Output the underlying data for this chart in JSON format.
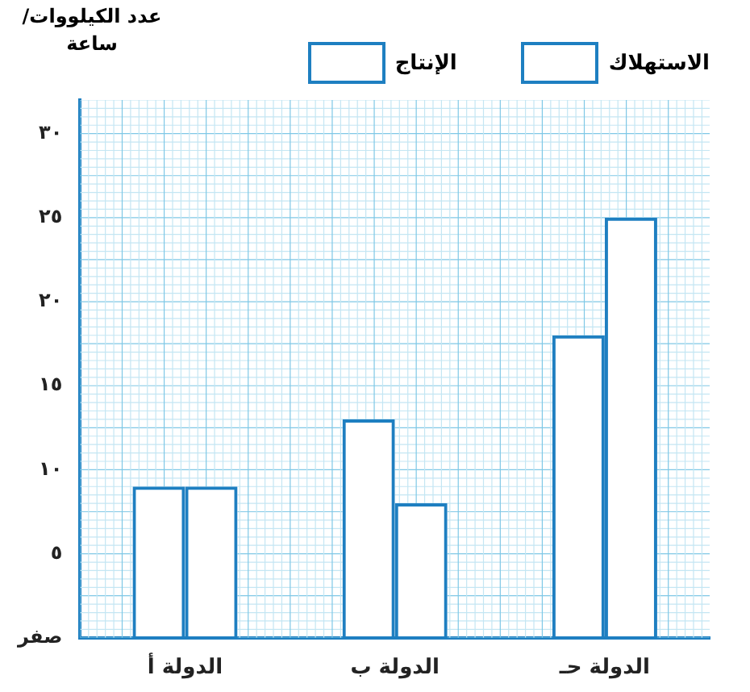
{
  "chart_data": {
    "type": "bar",
    "ylabel": "عدد الكيلووات/ ساعة",
    "categories": [
      "الدولة أ",
      "الدولة ب",
      "الدولة حـ"
    ],
    "series": [
      {
        "name": "الاستهلاك",
        "color": "#1e7fc1",
        "values": [
          9,
          13,
          18
        ]
      },
      {
        "name": "الإنتاج",
        "color": "#1e7fc1",
        "values": [
          9,
          8,
          25
        ]
      }
    ],
    "ylim": [
      0,
      32
    ],
    "yticks": [
      {
        "value": 0,
        "label": "صفر"
      },
      {
        "value": 5,
        "label": "٥"
      },
      {
        "value": 10,
        "label": "١٠"
      },
      {
        "value": 15,
        "label": "١٥"
      },
      {
        "value": 20,
        "label": "٢٠"
      },
      {
        "value": 25,
        "label": "٢٥"
      },
      {
        "value": 30,
        "label": "٣٠"
      }
    ],
    "grid": true,
    "legend": "top"
  }
}
